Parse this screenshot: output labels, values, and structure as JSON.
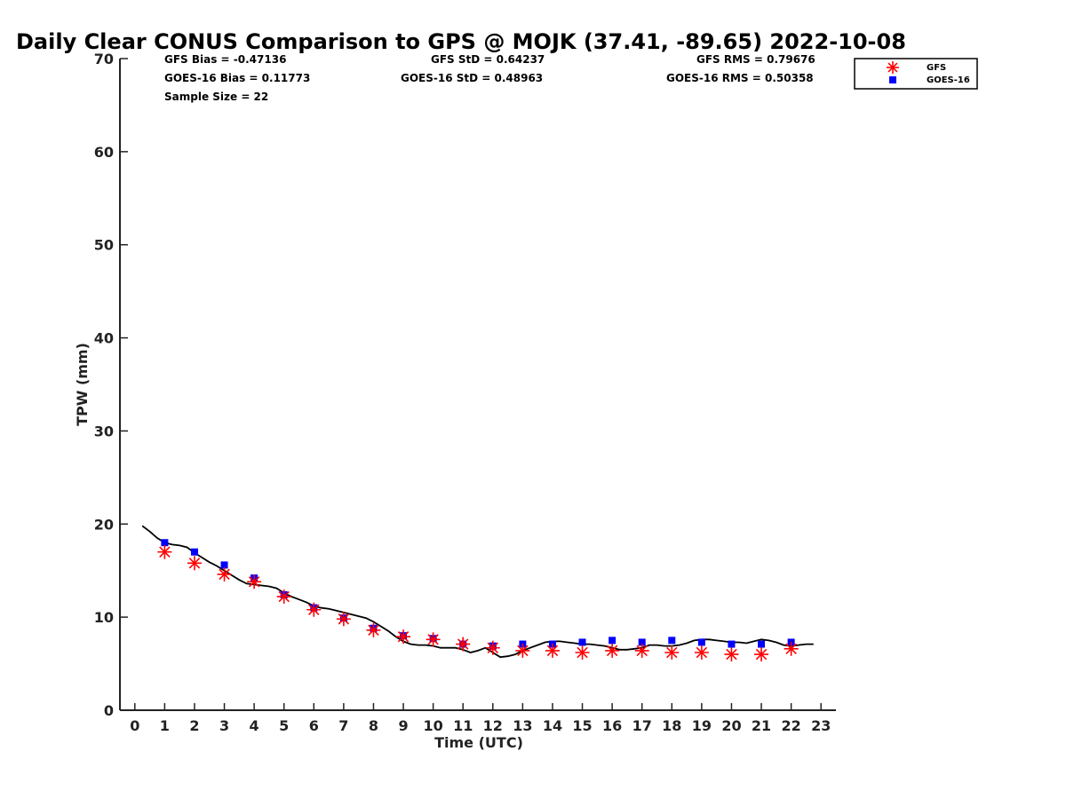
{
  "chart_data": {
    "type": "scatter",
    "title": "Daily Clear CONUS Comparison to GPS @ MOJK (37.41, -89.65) 2022-10-08",
    "xlabel": "Time (UTC)",
    "ylabel": "TPW (mm)",
    "xlim": [
      -0.5,
      23.5
    ],
    "ylim": [
      0,
      70
    ],
    "xticks": [
      0,
      1,
      2,
      3,
      4,
      5,
      6,
      7,
      8,
      9,
      10,
      11,
      12,
      13,
      14,
      15,
      16,
      17,
      18,
      19,
      20,
      21,
      22,
      23
    ],
    "yticks": [
      0,
      10,
      20,
      30,
      40,
      50,
      60,
      70
    ],
    "grid": false,
    "legend_position": "top-right",
    "stats": {
      "gfs_bias": "GFS Bias = -0.47136",
      "gfs_std": "GFS StD = 0.64237",
      "gfs_rms": "GFS RMS = 0.79676",
      "goes_bias": "GOES-16 Bias = 0.11773",
      "goes_std": "GOES-16 StD = 0.48963",
      "goes_rms": "GOES-16 RMS = 0.50358",
      "sample_size": "Sample Size = 22"
    },
    "series": [
      {
        "name": "GFS",
        "marker": "asterisk",
        "color": "#ff0000",
        "x": [
          1,
          2,
          3,
          4,
          5,
          6,
          7,
          8,
          9,
          10,
          11,
          12,
          13,
          14,
          15,
          16,
          17,
          18,
          19,
          20,
          21,
          22
        ],
        "y": [
          17.0,
          15.8,
          14.6,
          13.8,
          12.2,
          10.8,
          9.8,
          8.6,
          7.9,
          7.6,
          7.1,
          6.7,
          6.4,
          6.4,
          6.2,
          6.4,
          6.4,
          6.2,
          6.2,
          6.0,
          6.0,
          6.6
        ]
      },
      {
        "name": "GOES-16",
        "marker": "square",
        "color": "#0000ff",
        "x": [
          1,
          2,
          3,
          4,
          5,
          6,
          7,
          8,
          9,
          10,
          11,
          12,
          13,
          14,
          15,
          16,
          17,
          18,
          19,
          20,
          21,
          22
        ],
        "y": [
          18.0,
          17.0,
          15.6,
          14.2,
          12.4,
          11.0,
          9.9,
          8.8,
          8.0,
          7.7,
          7.1,
          6.9,
          7.1,
          7.1,
          7.3,
          7.5,
          7.3,
          7.5,
          7.3,
          7.1,
          7.1,
          7.3
        ]
      },
      {
        "name": "GPS",
        "marker": "line",
        "color": "#000000",
        "x": [
          0.25,
          0.5,
          0.75,
          1.0,
          1.25,
          1.5,
          1.75,
          2.0,
          2.25,
          2.5,
          2.75,
          3.0,
          3.25,
          3.5,
          3.75,
          4.0,
          4.25,
          4.5,
          4.75,
          5.0,
          5.25,
          5.5,
          5.75,
          6.0,
          6.25,
          6.5,
          6.75,
          7.0,
          7.25,
          7.5,
          7.75,
          8.0,
          8.25,
          8.5,
          8.75,
          9.0,
          9.25,
          9.5,
          9.75,
          10.0,
          10.25,
          10.5,
          10.75,
          11.0,
          11.25,
          11.5,
          11.75,
          12.0,
          12.25,
          12.5,
          12.75,
          13.0,
          13.25,
          13.5,
          13.75,
          14.0,
          14.25,
          14.5,
          14.75,
          15.0,
          15.25,
          15.5,
          15.75,
          16.0,
          16.25,
          16.5,
          16.75,
          17.0,
          17.25,
          17.5,
          17.75,
          18.0,
          18.25,
          18.5,
          18.75,
          19.0,
          19.25,
          19.5,
          19.75,
          20.0,
          20.25,
          20.5,
          20.75,
          21.0,
          21.25,
          21.5,
          21.75,
          22.0,
          22.25,
          22.5,
          22.75
        ],
        "y": [
          19.8,
          19.2,
          18.5,
          18.0,
          17.8,
          17.7,
          17.5,
          16.9,
          16.4,
          15.9,
          15.5,
          15.0,
          14.5,
          14.0,
          13.6,
          13.5,
          13.4,
          13.3,
          13.1,
          12.6,
          12.2,
          11.9,
          11.6,
          11.2,
          11.0,
          10.9,
          10.7,
          10.5,
          10.3,
          10.1,
          9.9,
          9.5,
          9.0,
          8.5,
          7.9,
          7.4,
          7.1,
          7.0,
          7.0,
          6.9,
          6.7,
          6.7,
          6.7,
          6.5,
          6.2,
          6.4,
          6.7,
          6.2,
          5.7,
          5.8,
          6.0,
          6.4,
          6.7,
          7.0,
          7.3,
          7.4,
          7.4,
          7.3,
          7.2,
          7.1,
          7.1,
          7.0,
          6.9,
          6.7,
          6.5,
          6.5,
          6.6,
          6.7,
          7.0,
          7.0,
          6.9,
          6.9,
          7.0,
          7.2,
          7.5,
          7.6,
          7.6,
          7.5,
          7.4,
          7.3,
          7.3,
          7.2,
          7.4,
          7.6,
          7.5,
          7.3,
          7.0,
          6.9,
          7.0,
          7.1,
          7.1
        ]
      }
    ]
  }
}
